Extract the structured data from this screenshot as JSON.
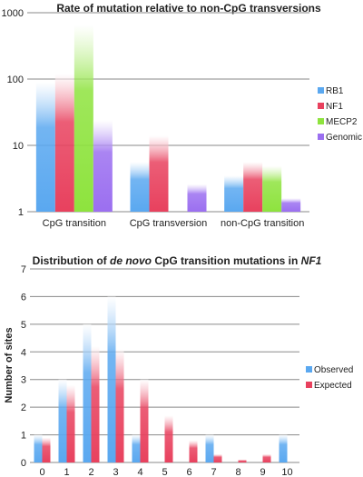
{
  "colors": {
    "RB1": "#5aa8f0",
    "NF1": "#e8415e",
    "MECP2": "#8ee33e",
    "Genomic": "#9b6ff0",
    "Observed": "#5aa8f0",
    "Expected": "#e8415e"
  },
  "chart_data": [
    {
      "type": "bar",
      "title": "Rate of mutation relative to non-CpG transversions",
      "yscale": "log",
      "ylim": [
        1,
        1000
      ],
      "yticks": [
        "1",
        "10",
        "100",
        "1000"
      ],
      "categories": [
        "CpG transition",
        "CpG transversion",
        "non-CpG transition"
      ],
      "series": [
        {
          "name": "RB1",
          "values": [
            90,
            5.6,
            3.5
          ]
        },
        {
          "name": "NF1",
          "values": [
            120,
            14,
            5.6
          ]
        },
        {
          "name": "MECP2",
          "values": [
            650,
            null,
            4.9
          ]
        },
        {
          "name": "Genomic",
          "values": [
            24,
            2.6,
            1.6
          ]
        }
      ],
      "legend": "right",
      "grid": true
    },
    {
      "type": "bar",
      "title_parts": [
        "Distribution of ",
        "de novo",
        " CpG transition mutations in ",
        "NF1"
      ],
      "ylabel": "Number of sites",
      "ylim": [
        0,
        7
      ],
      "yticks": [
        "0",
        "1",
        "2",
        "3",
        "4",
        "5",
        "6",
        "7"
      ],
      "categories": [
        "0",
        "1",
        "2",
        "3",
        "4",
        "5",
        "6",
        "7",
        "8",
        "9",
        "10"
      ],
      "series": [
        {
          "name": "Observed",
          "values": [
            1,
            3,
            5,
            6,
            1,
            0,
            0,
            1,
            0,
            0,
            1
          ]
        },
        {
          "name": "Expected",
          "values": [
            0.9,
            2.8,
            4.2,
            4.1,
            3.0,
            1.7,
            0.8,
            0.3,
            0.1,
            0.3,
            0
          ]
        }
      ],
      "legend": "right",
      "grid": true
    }
  ]
}
